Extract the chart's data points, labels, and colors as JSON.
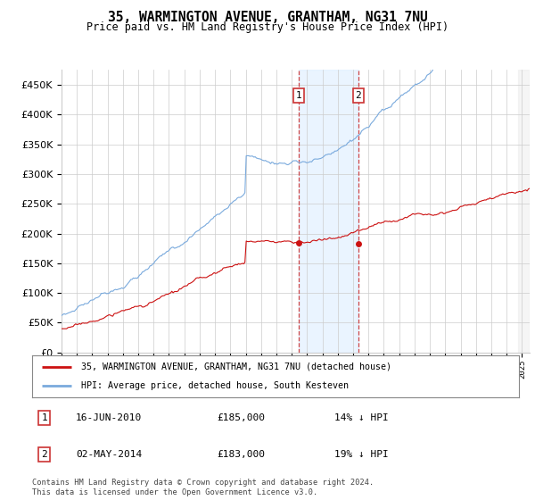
{
  "title": "35, WARMINGTON AVENUE, GRANTHAM, NG31 7NU",
  "subtitle": "Price paid vs. HM Land Registry's House Price Index (HPI)",
  "ytick_values": [
    0,
    50000,
    100000,
    150000,
    200000,
    250000,
    300000,
    350000,
    400000,
    450000
  ],
  "ylim": [
    0,
    475000
  ],
  "xlim_start": 1995.0,
  "xlim_end": 2025.5,
  "hpi_color": "#7aaadd",
  "property_color": "#cc1111",
  "purchase1_date": 2010.46,
  "purchase1_price": 185000,
  "purchase2_date": 2014.33,
  "purchase2_price": 183000,
  "legend_property": "35, WARMINGTON AVENUE, GRANTHAM, NG31 7NU (detached house)",
  "legend_hpi": "HPI: Average price, detached house, South Kesteven",
  "annotation1_label": "1",
  "annotation1_date": "16-JUN-2010",
  "annotation1_price": "£185,000",
  "annotation1_hpi": "14% ↓ HPI",
  "annotation2_label": "2",
  "annotation2_date": "02-MAY-2014",
  "annotation2_price": "£183,000",
  "annotation2_hpi": "19% ↓ HPI",
  "footnote": "Contains HM Land Registry data © Crown copyright and database right 2024.\nThis data is licensed under the Open Government Licence v3.0.",
  "background_color": "#ffffff",
  "grid_color": "#cccccc",
  "shaded_region_color": "#ddeeff",
  "hatch_color": "#aaaaaa"
}
